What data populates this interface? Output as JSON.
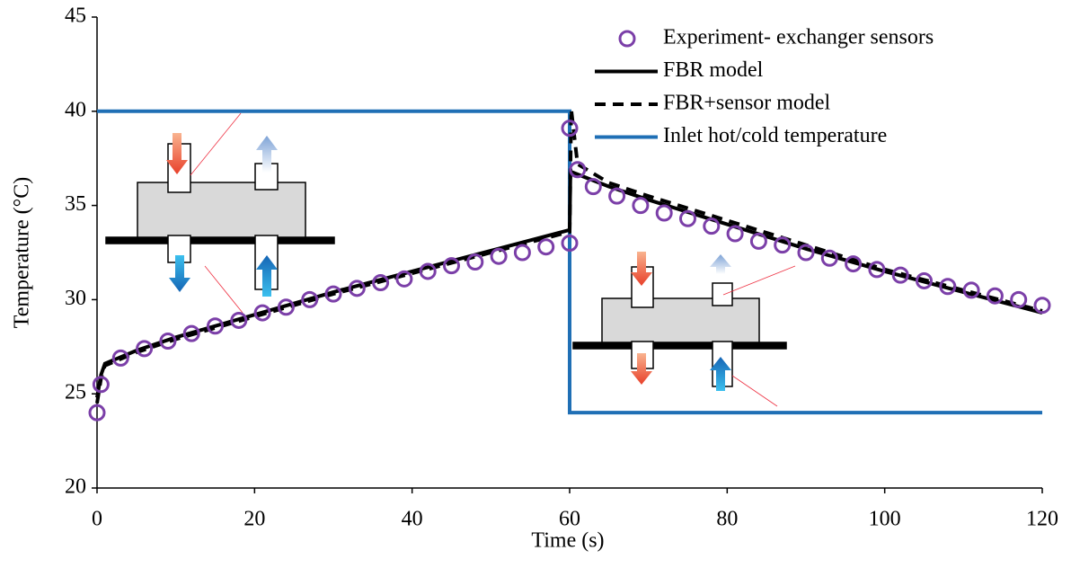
{
  "chart_data": {
    "type": "line",
    "x_label": "Time (s)",
    "y_label": "Temperature (°C)",
    "xlim": [
      0,
      120
    ],
    "xticks": [
      0,
      20,
      40,
      60,
      80,
      100,
      120
    ],
    "ylim": [
      20,
      45
    ],
    "yticks": [
      20,
      25,
      30,
      35,
      40,
      45
    ],
    "legend": "upper right",
    "series": [
      {
        "name": "Experiment- exchanger sensors",
        "style": "circle",
        "color": "#7b3fa8",
        "x": [
          0,
          0.5,
          3,
          6,
          9,
          12,
          15,
          18,
          21,
          24,
          27,
          30,
          33,
          36,
          39,
          42,
          45,
          48,
          51,
          54,
          57,
          60,
          60,
          61,
          63,
          66,
          69,
          72,
          75,
          78,
          81,
          84,
          87,
          90,
          93,
          96,
          99,
          102,
          105,
          108,
          111,
          114,
          117,
          120
        ],
        "values": [
          24.0,
          25.5,
          26.9,
          27.4,
          27.8,
          28.2,
          28.6,
          28.9,
          29.3,
          29.6,
          30.0,
          30.3,
          30.6,
          30.9,
          31.1,
          31.5,
          31.8,
          32.0,
          32.3,
          32.5,
          32.8,
          33.0,
          39.1,
          36.9,
          36.0,
          35.5,
          35.0,
          34.6,
          34.3,
          33.9,
          33.5,
          33.1,
          32.9,
          32.5,
          32.2,
          31.9,
          31.6,
          31.3,
          31.0,
          30.7,
          30.5,
          30.2,
          30.0,
          29.7
        ]
      },
      {
        "name": "FBR model",
        "style": "solid",
        "color": "#000000",
        "x": [
          0,
          0.5,
          1,
          5,
          10,
          20,
          30,
          40,
          50,
          60,
          60.1,
          65,
          70,
          80,
          90,
          100,
          110,
          120
        ],
        "values": [
          24.8,
          26.0,
          26.6,
          27.3,
          28.0,
          29.2,
          30.4,
          31.5,
          32.6,
          33.7,
          36.8,
          36.0,
          35.3,
          34.0,
          32.7,
          31.5,
          30.4,
          29.3
        ]
      },
      {
        "name": "FBR+sensor model",
        "style": "dashed",
        "color": "#000000",
        "x": [
          0,
          0.5,
          1,
          5,
          10,
          20,
          30,
          40,
          50,
          60,
          60.2,
          61,
          65,
          70,
          80,
          90,
          100,
          110,
          120
        ],
        "values": [
          24.5,
          25.8,
          26.5,
          27.2,
          27.9,
          29.1,
          30.3,
          31.4,
          32.5,
          33.6,
          40.1,
          37.2,
          36.2,
          35.5,
          34.2,
          32.9,
          31.6,
          30.5,
          29.4
        ]
      },
      {
        "name": "Inlet hot/cold temperature",
        "style": "solid",
        "color": "#1f6fb5",
        "x": [
          0,
          60,
          60,
          120
        ],
        "values": [
          40,
          40,
          24,
          24
        ]
      }
    ]
  }
}
